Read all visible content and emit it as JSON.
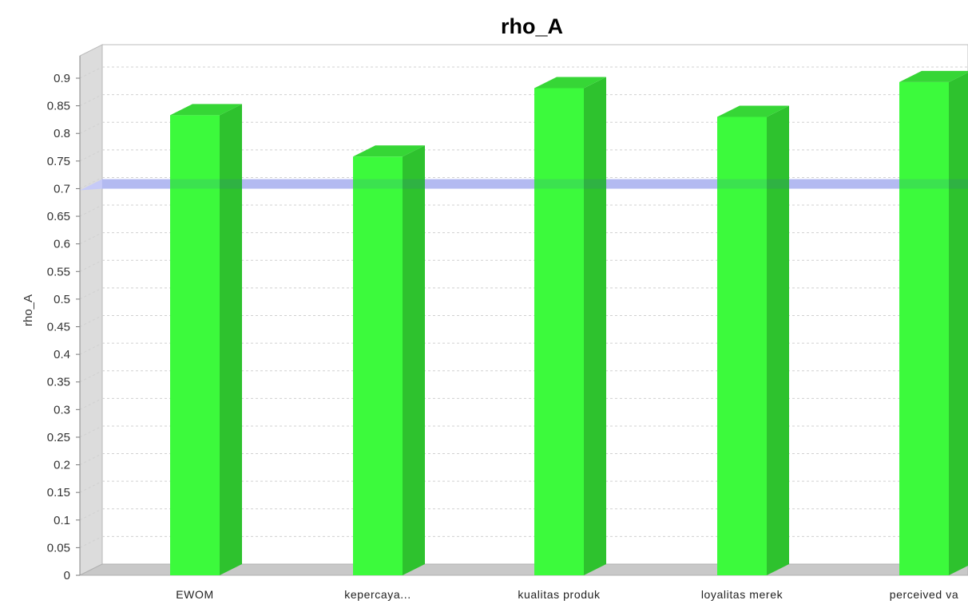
{
  "chart_data": {
    "type": "bar",
    "title": "rho_A",
    "ylabel": "rho_A",
    "xlabel": "",
    "categories": [
      "EWOM",
      "kepercaya...",
      "kualitas produk",
      "loyalitas merek",
      "perceived va"
    ],
    "series": [
      {
        "values": [
          0.833,
          0.758,
          0.882,
          0.83,
          0.893
        ]
      }
    ],
    "ylim": [
      0,
      0.9
    ],
    "yticks": [
      "0",
      "0.05",
      "0.1",
      "0.15",
      "0.2",
      "0.25",
      "0.3",
      "0.35",
      "0.4",
      "0.45",
      "0.5",
      "0.55",
      "0.6",
      "0.65",
      "0.7",
      "0.75",
      "0.8",
      "0.85",
      "0.9"
    ],
    "threshold": 0.7,
    "grid": true,
    "legend": "none",
    "colors": {
      "bar_front": "#3cfa3c",
      "bar_side": "#2ec22e",
      "bar_top": "#36d636",
      "threshold_band": "#c4c8f8",
      "floor": "#c8c8c8",
      "left_wall": "#dcdcdc",
      "grid": "#d0d0d0"
    }
  }
}
